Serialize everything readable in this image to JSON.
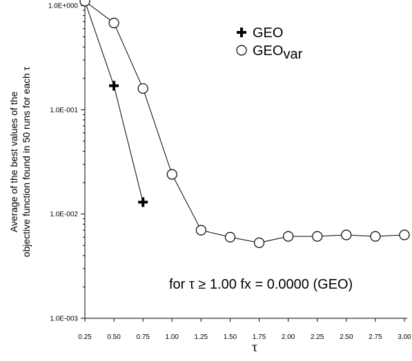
{
  "chart_data": {
    "type": "line",
    "y_scale": "log",
    "xlim": [
      0.25,
      3.0
    ],
    "ylim": [
      0.001,
      1.0
    ],
    "x_ticks": [
      "0.25",
      "0.50",
      "0.75",
      "1.00",
      "1.25",
      "1.50",
      "1.75",
      "2.00",
      "2.25",
      "2.50",
      "2.75",
      "3.00"
    ],
    "y_ticks": [
      {
        "value": 1.0,
        "label": "1.0E+000"
      },
      {
        "value": 0.1,
        "label": "1.0E-001"
      },
      {
        "value": 0.01,
        "label": "1.0E-002"
      },
      {
        "value": 0.001,
        "label": "1.0E-003"
      }
    ],
    "xlabel": "τ",
    "ylabel_line1": "Average of the best values of the",
    "ylabel_line2": "objective function found in 50 runs for each τ",
    "series": [
      {
        "name": "GEO",
        "marker": "plus",
        "x": [
          0.25,
          0.5,
          0.75
        ],
        "y": [
          1.1,
          0.17,
          0.013
        ]
      },
      {
        "name": "GEO",
        "name_subscript": "var",
        "marker": "circle",
        "x": [
          0.25,
          0.5,
          0.75,
          1.0,
          1.25,
          1.5,
          1.75,
          2.0,
          2.25,
          2.5,
          2.75,
          3.0
        ],
        "y": [
          1.1,
          0.68,
          0.16,
          0.024,
          0.007,
          0.006,
          0.0053,
          0.0061,
          0.0061,
          0.0063,
          0.0061,
          0.0063
        ]
      }
    ],
    "legend_position": "top-right",
    "annotation": "for τ ≥ 1.00 fx = 0.0000 (GEO)",
    "grid": false
  }
}
